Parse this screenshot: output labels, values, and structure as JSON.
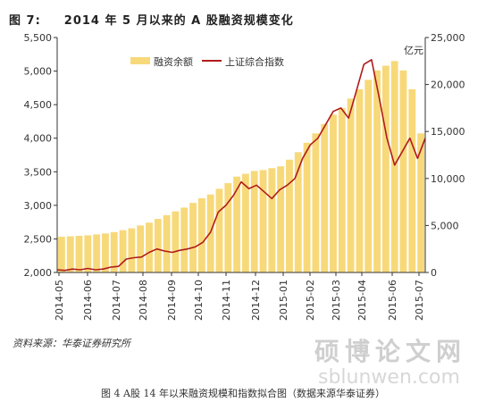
{
  "figure": {
    "label": "图 7:",
    "title": "2014 年 5 月以来的 A 股融资规模变化",
    "source": "资料来源：华泰证券研究所",
    "caption": "图 4    A股 14 年以来融资规模和指数拟合图（数据来源华泰证券）",
    "watermark_cn": "硕博论文网",
    "watermark_en": "sblunwen.com"
  },
  "chart_data": {
    "type": "bar",
    "x_labels": [
      "2014-05",
      "2014-06",
      "2014-07",
      "2014-08",
      "2014-09",
      "2014-10",
      "2014-11",
      "2014-12",
      "2015-01",
      "2015-02",
      "2015-03",
      "2015-04",
      "2015-06",
      "2015-07"
    ],
    "left_axis": {
      "ticks": [
        "2,000",
        "2,500",
        "3,000",
        "3,500",
        "4,000",
        "4,500",
        "5,000",
        "5,500"
      ],
      "range": [
        2000,
        5500
      ]
    },
    "right_axis": {
      "ticks": [
        "0",
        "5,000",
        "10,000",
        "15,000",
        "20,000",
        "25,000"
      ],
      "range": [
        0,
        25000
      ],
      "unit": "亿元"
    },
    "series": [
      {
        "name": "融资余额",
        "kind": "bar",
        "axis": "right",
        "color": "#f7d97a",
        "values": [
          3800,
          3850,
          3900,
          3950,
          4050,
          4150,
          4300,
          4500,
          4700,
          5000,
          5300,
          5700,
          6100,
          6500,
          6900,
          7400,
          7900,
          8300,
          8900,
          9500,
          10200,
          10500,
          10800,
          10900,
          11100,
          11300,
          12000,
          12800,
          13800,
          14800,
          15800,
          16800,
          17500,
          18500,
          19500,
          20500,
          21500,
          22000,
          22500,
          21500,
          19500,
          14800
        ]
      },
      {
        "name": "上证综合指数",
        "kind": "line",
        "axis": "left",
        "color": "#b01c1c",
        "values": [
          2040,
          2030,
          2050,
          2040,
          2060,
          2040,
          2050,
          2080,
          2090,
          2200,
          2220,
          2230,
          2300,
          2350,
          2320,
          2300,
          2330,
          2350,
          2380,
          2450,
          2600,
          2900,
          3000,
          3150,
          3350,
          3250,
          3300,
          3200,
          3100,
          3230,
          3300,
          3400,
          3700,
          3900,
          4000,
          4200,
          4400,
          4450,
          4300,
          4700,
          5100,
          5170,
          4600,
          4000,
          3600,
          3800,
          4000,
          3700,
          4000
        ]
      }
    ],
    "legend": "top-center"
  }
}
